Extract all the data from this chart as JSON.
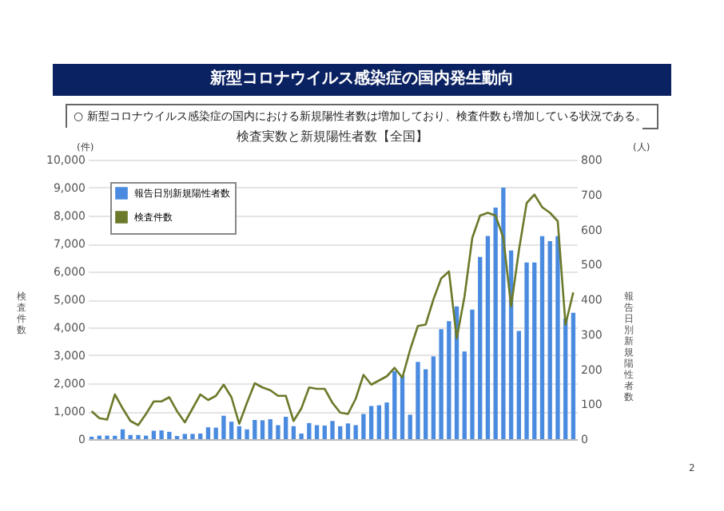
{
  "chart_data": {
    "type": "bar",
    "title": "新型コロナウイルス感染症の国内発生動向",
    "subtitle": "○ 新型コロナウイルス感染症の国内における新規陽性者数は増加しており、検査件数も増加している状況である。",
    "annotations": [
      "検査実数と新規陽性者数【全国】",
      "(件)",
      "(人)",
      "2"
    ],
    "ylabel": "検査件数",
    "y2label": "報告日別新規陽性者数",
    "categories": [
      null,
      null,
      null,
      null,
      null,
      null,
      null,
      null,
      null,
      null,
      null,
      null,
      null,
      null,
      null,
      null,
      null,
      null,
      null,
      null,
      null,
      null,
      null,
      null,
      null,
      null,
      null,
      null,
      null,
      null,
      null,
      null,
      null,
      null,
      null,
      null,
      null,
      null,
      null,
      null,
      null,
      null,
      null,
      null,
      null,
      null,
      null,
      null,
      null,
      null,
      null,
      null,
      null,
      null,
      null,
      null,
      null,
      null,
      null,
      null,
      null,
      null,
      null
    ],
    "series": [
      {
        "name": "報告日別新規陽性者数",
        "axis": "y2",
        "color": "#4a8be0",
        "values": [
          7,
          10,
          10,
          10,
          28,
          12,
          12,
          10,
          24,
          25,
          21,
          9,
          15,
          15,
          16,
          34,
          33,
          67,
          50,
          37,
          28,
          55,
          54,
          57,
          40,
          64,
          37,
          16,
          46,
          40,
          39,
          52,
          37,
          45,
          40,
          72,
          95,
          97,
          105,
          195,
          183,
          70,
          221,
          200,
          237,
          315,
          338,
          380,
          251,
          371,
          522,
          582,
          663,
          720,
          540,
          310,
          506,
          506,
          581,
          567,
          581,
          345,
          362
        ]
      },
      {
        "name": "検査件数",
        "type": "line",
        "color": "#6b7a2a",
        "values": [
          1000,
          750,
          700,
          1600,
          1100,
          650,
          500,
          900,
          1350,
          1350,
          1500,
          1000,
          600,
          1100,
          1600,
          1400,
          1550,
          1950,
          1500,
          550,
          1300,
          2000,
          1850,
          1750,
          1550,
          1550,
          650,
          1100,
          1850,
          1800,
          1800,
          1300,
          950,
          900,
          1450,
          2300,
          1950,
          2100,
          2250,
          2550,
          2200,
          3200,
          4050,
          4100,
          5000,
          5750,
          6000,
          3600,
          5100,
          7200,
          8000,
          8100,
          8000,
          7200,
          4750,
          6750,
          8450,
          8750,
          8300,
          8100,
          7800,
          4100,
          5250
        ]
      }
    ],
    "ylim": [
      0,
      10000
    ],
    "yticks": [
      0,
      {
        "value": 1000,
        "label": "1,000"
      },
      {
        "value": 2000,
        "label": "2,000"
      },
      {
        "value": 3000,
        "label": "3,000"
      },
      {
        "value": 4000,
        "label": "4,000"
      },
      {
        "value": 5000,
        "label": "5,000"
      },
      {
        "value": 6000,
        "label": "6,000"
      },
      {
        "value": 7000,
        "label": "7,000"
      },
      {
        "value": 8000,
        "label": "8,000"
      },
      {
        "value": 9000,
        "label": "9,000"
      },
      {
        "value": 10000,
        "label": "10,000"
      }
    ],
    "y2lim": [
      0,
      800
    ],
    "y2ticks": [
      0,
      100,
      200,
      300,
      400,
      500,
      600,
      700,
      800
    ],
    "grid": "y",
    "legend": "top left",
    "marker": "none",
    "line_style": "solid"
  }
}
